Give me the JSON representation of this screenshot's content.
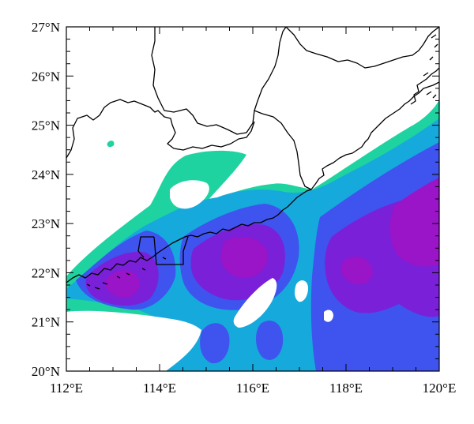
{
  "map": {
    "lon_ticks": [
      {
        "value": 112,
        "label": "112°E"
      },
      {
        "value": 114,
        "label": "114°E"
      },
      {
        "value": 116,
        "label": "116°E"
      },
      {
        "value": 118,
        "label": "118°E"
      },
      {
        "value": 120,
        "label": "120°E"
      }
    ],
    "lat_ticks": [
      {
        "value": 20,
        "label": "20°N"
      },
      {
        "value": 21,
        "label": "21°N"
      },
      {
        "value": 22,
        "label": "22°N"
      },
      {
        "value": 23,
        "label": "23°N"
      },
      {
        "value": 24,
        "label": "24°N"
      },
      {
        "value": 25,
        "label": "25°N"
      },
      {
        "value": 26,
        "label": "26°N"
      },
      {
        "value": 27,
        "label": "27°N"
      }
    ],
    "extent": {
      "lon": [
        112,
        120
      ],
      "lat": [
        20,
        27
      ]
    },
    "colors": {
      "level1": "#1fd3a0",
      "level2": "#16a9dc",
      "level3": "#3f53ee",
      "level4": "#7a20d8",
      "level5": "#9a14c8",
      "coastline": "#000000"
    }
  }
}
